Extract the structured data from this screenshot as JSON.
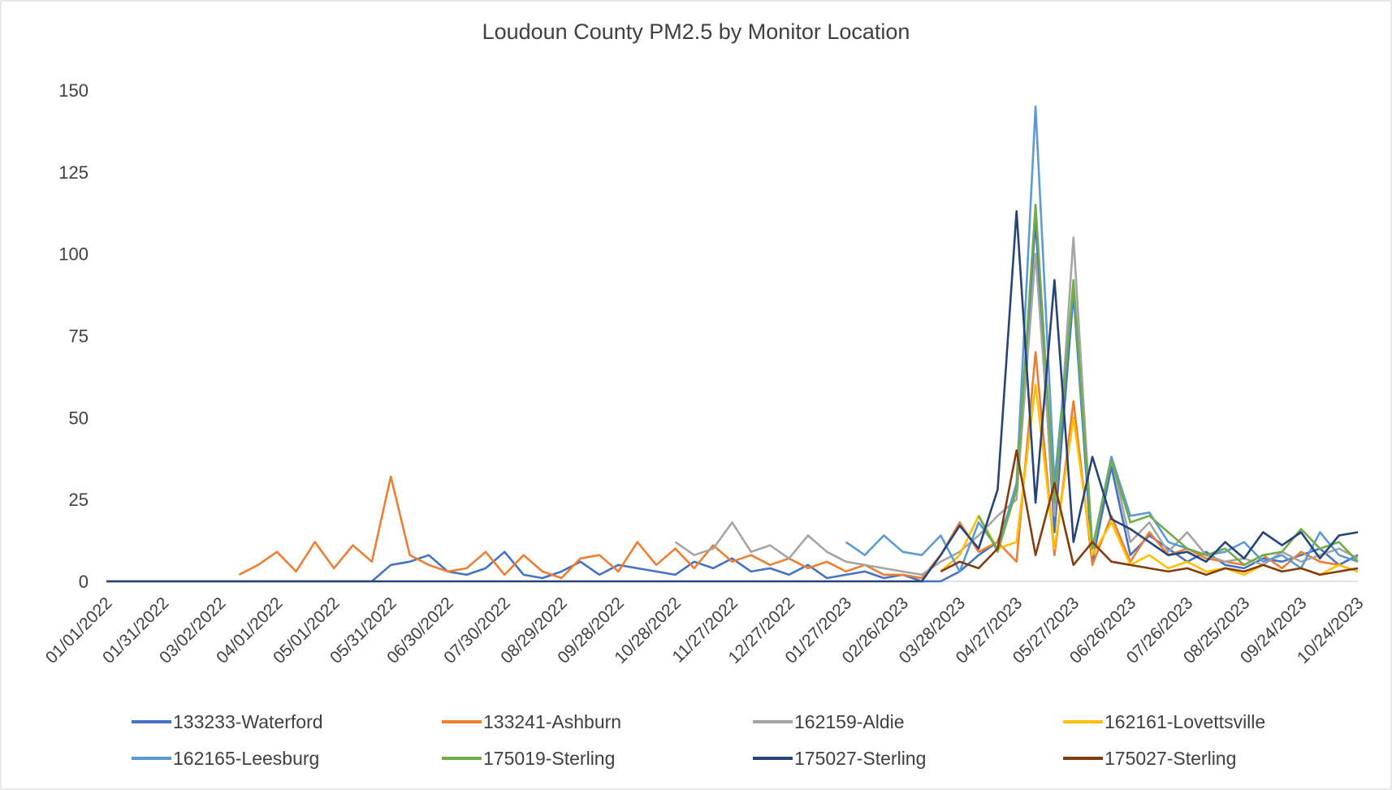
{
  "chart_data": {
    "type": "line",
    "title": "Loudoun County PM2.5 by Monitor Location",
    "categories": [
      "01/01/2022",
      null,
      null,
      "01/31/2022",
      null,
      null,
      "03/02/2022",
      null,
      null,
      "04/01/2022",
      null,
      null,
      "05/01/2022",
      null,
      null,
      "05/31/2022",
      null,
      null,
      "06/30/2022",
      null,
      null,
      "07/30/2022",
      null,
      null,
      "08/29/2022",
      null,
      null,
      "09/28/2022",
      null,
      null,
      "10/28/2022",
      null,
      null,
      "11/27/2022",
      null,
      null,
      "12/27/2022",
      null,
      null,
      "01/27/2023",
      null,
      null,
      "02/26/2023",
      null,
      null,
      "03/28/2023",
      null,
      null,
      "04/27/2023",
      null,
      null,
      "05/27/2023",
      null,
      null,
      "06/26/2023",
      null,
      null,
      "07/26/2023",
      null,
      null,
      "08/25/2023",
      null,
      null,
      "09/24/2023",
      null,
      null,
      "10/24/2023"
    ],
    "series": [
      {
        "name": "133233-Waterford",
        "color": "#4472c4",
        "values": [
          0,
          0,
          0,
          0,
          0,
          0,
          0,
          0,
          0,
          0,
          0,
          0,
          0,
          0,
          0,
          5,
          6,
          8,
          3,
          2,
          4,
          9,
          2,
          1,
          3,
          6,
          2,
          5,
          4,
          3,
          2,
          6,
          4,
          7,
          3,
          4,
          2,
          5,
          1,
          2,
          3,
          1,
          2,
          0,
          0,
          3,
          8,
          12,
          28,
          110,
          15,
          88,
          6,
          35,
          8,
          14,
          10,
          6,
          9,
          5,
          4,
          7,
          6,
          8,
          10,
          5,
          8
        ]
      },
      {
        "name": "133241-Ashburn",
        "color": "#ed7d31",
        "values": [
          null,
          null,
          null,
          null,
          null,
          null,
          null,
          2,
          5,
          9,
          3,
          12,
          4,
          11,
          6,
          32,
          8,
          5,
          3,
          4,
          9,
          2,
          8,
          3,
          1,
          7,
          8,
          3,
          12,
          5,
          10,
          4,
          11,
          6,
          8,
          5,
          7,
          4,
          6,
          3,
          5,
          2,
          2,
          1,
          8,
          18,
          9,
          12,
          6,
          70,
          8,
          55,
          5,
          20,
          6,
          15,
          8,
          10,
          7,
          6,
          5,
          8,
          4,
          9,
          6,
          5,
          3
        ]
      },
      {
        "name": "162159-Aldie",
        "color": "#a5a5a5",
        "values": [
          null,
          null,
          null,
          null,
          null,
          null,
          null,
          null,
          null,
          null,
          null,
          null,
          null,
          null,
          null,
          null,
          null,
          null,
          null,
          null,
          null,
          null,
          null,
          null,
          null,
          null,
          null,
          null,
          null,
          null,
          12,
          8,
          10,
          18,
          9,
          11,
          7,
          14,
          9,
          6,
          5,
          4,
          3,
          2,
          6,
          9,
          14,
          20,
          25,
          100,
          20,
          105,
          10,
          38,
          12,
          18,
          9,
          15,
          8,
          6,
          7,
          5,
          9,
          6,
          8,
          10,
          7
        ]
      },
      {
        "name": "162161-Lovettsville",
        "color": "#ffc000",
        "values": [
          null,
          null,
          null,
          null,
          null,
          null,
          null,
          null,
          null,
          null,
          null,
          null,
          null,
          null,
          null,
          null,
          null,
          null,
          null,
          null,
          null,
          null,
          null,
          null,
          null,
          null,
          null,
          null,
          null,
          null,
          null,
          null,
          null,
          null,
          null,
          null,
          null,
          null,
          null,
          null,
          null,
          null,
          null,
          null,
          3,
          8,
          20,
          10,
          12,
          60,
          10,
          50,
          8,
          18,
          5,
          8,
          4,
          6,
          3,
          4,
          2,
          5,
          3,
          4,
          2,
          5,
          3
        ]
      },
      {
        "name": "162165-Leesburg",
        "color": "#5b9bd5",
        "values": [
          null,
          null,
          null,
          null,
          null,
          null,
          null,
          null,
          null,
          null,
          null,
          null,
          null,
          null,
          null,
          null,
          null,
          null,
          null,
          null,
          null,
          null,
          null,
          null,
          null,
          null,
          null,
          null,
          null,
          null,
          null,
          null,
          null,
          null,
          null,
          null,
          null,
          null,
          null,
          12,
          8,
          14,
          9,
          8,
          14,
          3,
          18,
          10,
          30,
          145,
          30,
          90,
          10,
          38,
          20,
          21,
          12,
          10,
          8,
          9,
          12,
          6,
          8,
          4,
          15,
          8,
          6
        ]
      },
      {
        "name": "175019-Sterling",
        "color": "#70ad47",
        "values": [
          null,
          null,
          null,
          null,
          null,
          null,
          null,
          null,
          null,
          null,
          null,
          null,
          null,
          null,
          null,
          null,
          null,
          null,
          null,
          null,
          null,
          null,
          null,
          null,
          null,
          null,
          null,
          null,
          null,
          null,
          null,
          null,
          null,
          null,
          null,
          null,
          null,
          null,
          null,
          null,
          null,
          null,
          null,
          null,
          null,
          null,
          20,
          9,
          28,
          115,
          24,
          92,
          10,
          37,
          18,
          20,
          15,
          10,
          8,
          10,
          5,
          8,
          9,
          16,
          10,
          12,
          6
        ]
      },
      {
        "name": "175027-Sterling",
        "color": "#264478",
        "values": [
          0,
          0,
          0,
          0,
          0,
          0,
          0,
          0,
          0,
          0,
          0,
          0,
          0,
          0,
          0,
          0,
          0,
          0,
          0,
          0,
          0,
          0,
          0,
          0,
          0,
          0,
          0,
          0,
          0,
          0,
          0,
          0,
          0,
          0,
          0,
          0,
          0,
          0,
          0,
          0,
          0,
          0,
          0,
          0,
          8,
          17,
          10,
          28,
          113,
          24,
          92,
          12,
          38,
          19,
          16,
          12,
          8,
          9,
          6,
          12,
          7,
          15,
          11,
          15,
          7,
          14,
          15
        ]
      },
      {
        "name": "175027-Sterling",
        "color": "#843c0c",
        "values": [
          null,
          null,
          null,
          null,
          null,
          null,
          null,
          null,
          null,
          null,
          null,
          null,
          null,
          null,
          null,
          null,
          null,
          null,
          null,
          null,
          null,
          null,
          null,
          null,
          null,
          null,
          null,
          null,
          null,
          null,
          null,
          null,
          null,
          null,
          null,
          null,
          null,
          null,
          null,
          null,
          null,
          null,
          null,
          null,
          3,
          6,
          4,
          10,
          40,
          8,
          30,
          5,
          12,
          6,
          5,
          4,
          3,
          4,
          2,
          4,
          3,
          5,
          3,
          4,
          2,
          3,
          4
        ]
      }
    ],
    "ylim": [
      0,
      150
    ],
    "yticks": [
      0,
      25,
      50,
      75,
      100,
      125,
      150
    ]
  }
}
